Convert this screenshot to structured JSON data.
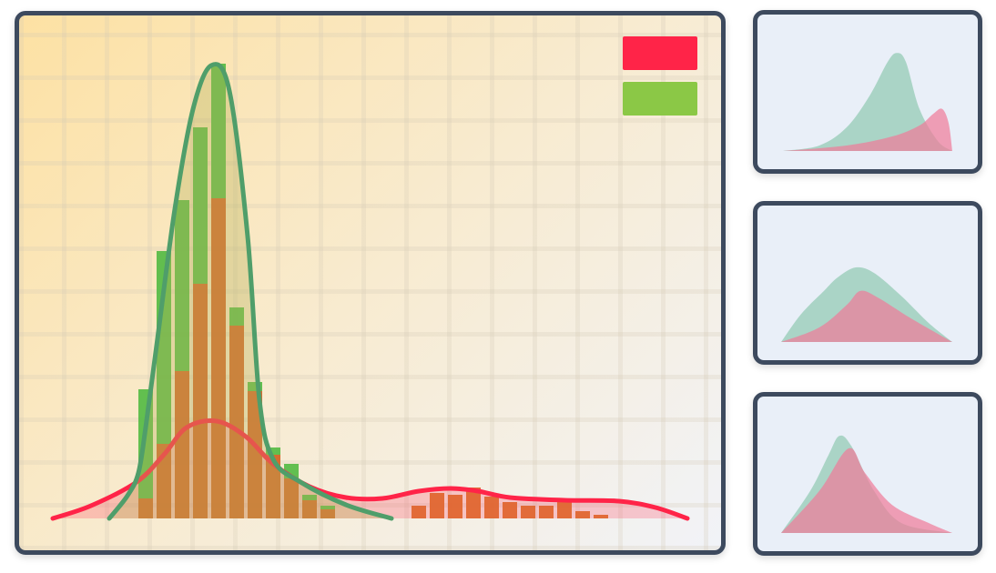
{
  "chart_data": [
    {
      "type": "histogram",
      "bins": [
        0,
        1,
        2,
        3,
        4,
        5,
        6,
        7,
        8,
        9,
        10,
        11,
        12,
        13,
        14,
        15,
        16,
        17,
        18,
        19,
        20,
        21,
        22,
        23,
        24,
        25,
        26,
        27,
        28,
        29,
        30,
        31,
        32,
        33,
        34,
        35,
        36
      ],
      "xlim": [
        0,
        36
      ],
      "ylim": [
        0,
        100
      ],
      "legend": "top-right",
      "series": [
        {
          "color": "#55bb44",
          "values": [
            0,
            0,
            0,
            0,
            0,
            28.4,
            58.8,
            70,
            86,
            100,
            46.4,
            30,
            15.6,
            12,
            5.2,
            2.8,
            0,
            0,
            0,
            0,
            0,
            0,
            0,
            0,
            0,
            0,
            0,
            0,
            0,
            0,
            0,
            0,
            0,
            0,
            0,
            0
          ]
        },
        {
          "color": "#e0642c",
          "values": [
            0,
            0,
            0,
            0,
            0,
            4.4,
            16.4,
            32.4,
            51.6,
            70.4,
            42.4,
            28,
            14,
            8.8,
            4,
            2,
            0,
            0,
            0,
            0,
            2.8,
            5.6,
            5.2,
            6.8,
            4.8,
            3.6,
            2.8,
            2.8,
            3.6,
            1.6,
            0.8,
            0,
            0,
            0,
            0,
            0
          ]
        }
      ],
      "curves": [
        {
          "color": "#ff2448",
          "x": [
            0.4,
            2.5,
            5,
            6.5,
            7.75,
            9.4,
            11,
            12.5,
            14.5,
            16.5,
            18.5,
            20.5,
            22.25,
            23.75,
            25.5,
            28.5,
            31.5,
            33.5,
            35.25
          ],
          "values": [
            0,
            2.8,
            8,
            14,
            20,
            21.4,
            18,
            12,
            7,
            4.6,
            4.4,
            6,
            6.6,
            6,
            4.6,
            4,
            3.8,
            2.4,
            0
          ]
        },
        {
          "color": "#8bc846",
          "line_color": "#4f9e6a",
          "x": [
            3.5,
            4.5,
            5.1,
            5.5,
            6.1,
            7.1,
            8.1,
            9.1,
            10.1,
            11.1,
            11.75,
            12.5,
            14,
            16.5,
            19
          ],
          "values": [
            0,
            5,
            10,
            20,
            38,
            68,
            90,
            99.6,
            94,
            62,
            26,
            13,
            8,
            3,
            0
          ]
        }
      ]
    },
    {
      "type": "area",
      "xlim": [
        0,
        10
      ],
      "ylim": [
        0,
        10
      ],
      "series": [
        {
          "color": "#8fc9b0",
          "x": [
            0,
            2.15,
            3.76,
            5.11,
            6.18,
            6.72,
            7.26,
            8.06,
            9.14,
            10
          ],
          "values": [
            0,
            0.55,
            2.36,
            5.5,
            8.9,
            9.8,
            8.9,
            4.2,
            1,
            0
          ]
        },
        {
          "color": "#f07b98",
          "x": [
            0,
            3.76,
            6.45,
            8.06,
            8.87,
            9.4,
            9.78,
            10
          ],
          "values": [
            0,
            0.55,
            1.45,
            2.55,
            3.7,
            4.2,
            2.8,
            0
          ]
        }
      ]
    },
    {
      "type": "area",
      "xlim": [
        0,
        10
      ],
      "ylim": [
        0,
        10
      ],
      "series": [
        {
          "color": "#8fc9b0",
          "x": [
            0,
            1.17,
            2.5,
            3.3,
            4.36,
            5.43,
            7.02,
            8.62,
            10
          ],
          "values": [
            0,
            2.8,
            5.1,
            6.45,
            7.45,
            6.9,
            4.6,
            1.9,
            0
          ]
        },
        {
          "color": "#f07b98",
          "x": [
            0,
            2.23,
            3.83,
            4.63,
            5.69,
            7.55,
            10
          ],
          "values": [
            0,
            1.45,
            3.7,
            5.1,
            4.4,
            2.4,
            0
          ]
        }
      ]
    },
    {
      "type": "area",
      "xlim": [
        0,
        10
      ],
      "ylim": [
        0,
        10
      ],
      "series": [
        {
          "color": "#8fc9b0",
          "x": [
            0,
            1.7,
            2.77,
            3.4,
            4.1,
            5.43,
            7.02,
            10
          ],
          "values": [
            0,
            4.2,
            7.8,
            9.7,
            8.7,
            4.2,
            1,
            0
          ]
        },
        {
          "color": "#f07b98",
          "x": [
            0,
            2.23,
            3.94,
            4.9,
            6.49,
            8.62,
            10
          ],
          "values": [
            0,
            4.2,
            8.45,
            6,
            2.8,
            1,
            0
          ]
        }
      ]
    }
  ]
}
